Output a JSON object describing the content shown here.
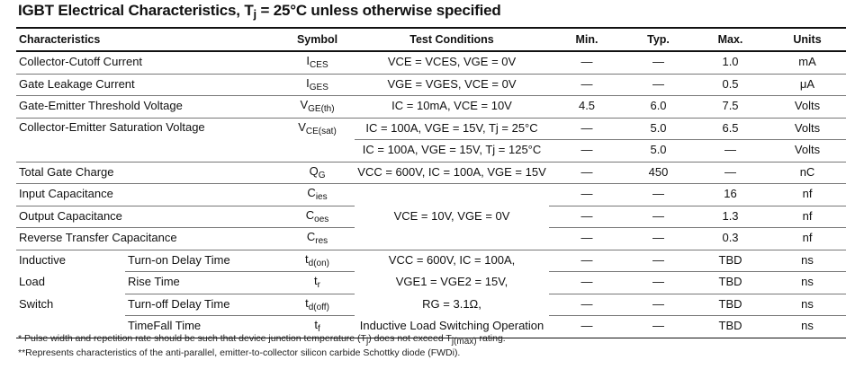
{
  "title": {
    "main": "IGBT Electrical Characteristics, T",
    "sub": "j",
    "rest": " = 25°C unless otherwise specified"
  },
  "headers": {
    "characteristics": "Characteristics",
    "symbol": "Symbol",
    "test_conditions": "Test Conditions",
    "min": "Min.",
    "typ": "Typ.",
    "max": "Max.",
    "units": "Units"
  },
  "rows": {
    "r1": {
      "name": "Collector-Cutoff Current",
      "sym": "I",
      "sym_sub": "CES",
      "cond": "VCE = VCES, VGE = 0V",
      "min": "—",
      "typ": "—",
      "max": "1.0",
      "unit": "mA"
    },
    "r2": {
      "name": "Gate Leakage Current",
      "sym": "I",
      "sym_sub": "GES",
      "cond": "VGE = VGES, VCE = 0V",
      "min": "—",
      "typ": "—",
      "max": "0.5",
      "unit": "μA"
    },
    "r3": {
      "name": "Gate-Emitter Threshold Voltage",
      "sym": "V",
      "sym_sub": "GE(th)",
      "cond": "IC = 10mA, VCE = 10V",
      "min": "4.5",
      "typ": "6.0",
      "max": "7.5",
      "unit": "Volts"
    },
    "r4": {
      "name": "Collector-Emitter Saturation Voltage",
      "sym": "V",
      "sym_sub": "CE(sat)",
      "cond": "IC = 100A, VGE = 15V, Tj = 25°C",
      "min": "—",
      "typ": "5.0",
      "max": "6.5",
      "unit": "Volts"
    },
    "r5": {
      "cond": "IC = 100A, VGE = 15V, Tj = 125°C",
      "min": "—",
      "typ": "5.0",
      "max": "—",
      "unit": "Volts"
    },
    "r6": {
      "name": "Total Gate Charge",
      "sym": "Q",
      "sym_sub": "G",
      "cond": "VCC = 600V, IC = 100A, VGE = 15V",
      "min": "—",
      "typ": "450",
      "max": "—",
      "unit": "nC"
    },
    "r7": {
      "name": "Input Capacitance",
      "sym": "C",
      "sym_sub": "ies",
      "min": "—",
      "typ": "—",
      "max": "16",
      "unit": "nf"
    },
    "r8": {
      "name": "Output Capacitance",
      "sym": "C",
      "sym_sub": "oes",
      "min": "—",
      "typ": "—",
      "max": "1.3",
      "unit": "nf"
    },
    "r9": {
      "name": "Reverse Transfer Capacitance",
      "sym": "C",
      "sym_sub": "res",
      "min": "—",
      "typ": "—",
      "max": "0.3",
      "unit": "nf"
    },
    "cap_cond": "VCE = 10V, VGE = 0V",
    "r10": {
      "group": "Inductive",
      "name": "Turn-on Delay Time",
      "sym": "t",
      "sym_sub": "d(on)",
      "cond": "VCC = 600V, IC = 100A,",
      "min": "—",
      "typ": "—",
      "max": "TBD",
      "unit": "ns"
    },
    "r11": {
      "group": "Load",
      "name": "Rise Time",
      "sym": "t",
      "sym_sub": "r",
      "cond": "VGE1 = VGE2 = 15V,",
      "min": "—",
      "typ": "—",
      "max": "TBD",
      "unit": "ns"
    },
    "r12": {
      "group": "Switch",
      "name": "Turn-off Delay Time",
      "sym": "t",
      "sym_sub": "d(off)",
      "cond": "RG = 3.1Ω,",
      "min": "—",
      "typ": "—",
      "max": "TBD",
      "unit": "ns"
    },
    "r13": {
      "group": "",
      "name": "TimeFall Time",
      "sym": "t",
      "sym_sub": "f",
      "cond": "Inductive Load Switching Operation",
      "min": "—",
      "typ": "—",
      "max": "TBD",
      "unit": "ns"
    }
  },
  "notes": {
    "n1_a": "* Pulse width and repetition rate should be such that device junction temperature (T",
    "n1_b": "j",
    "n1_c": ") does not exceed T",
    "n1_d": "j(max)",
    "n1_e": " rating.",
    "n2": "**Represents characteristics of the anti-parallel, emitter-to-collector silicon carbide Schottky diode (FWDi)."
  }
}
